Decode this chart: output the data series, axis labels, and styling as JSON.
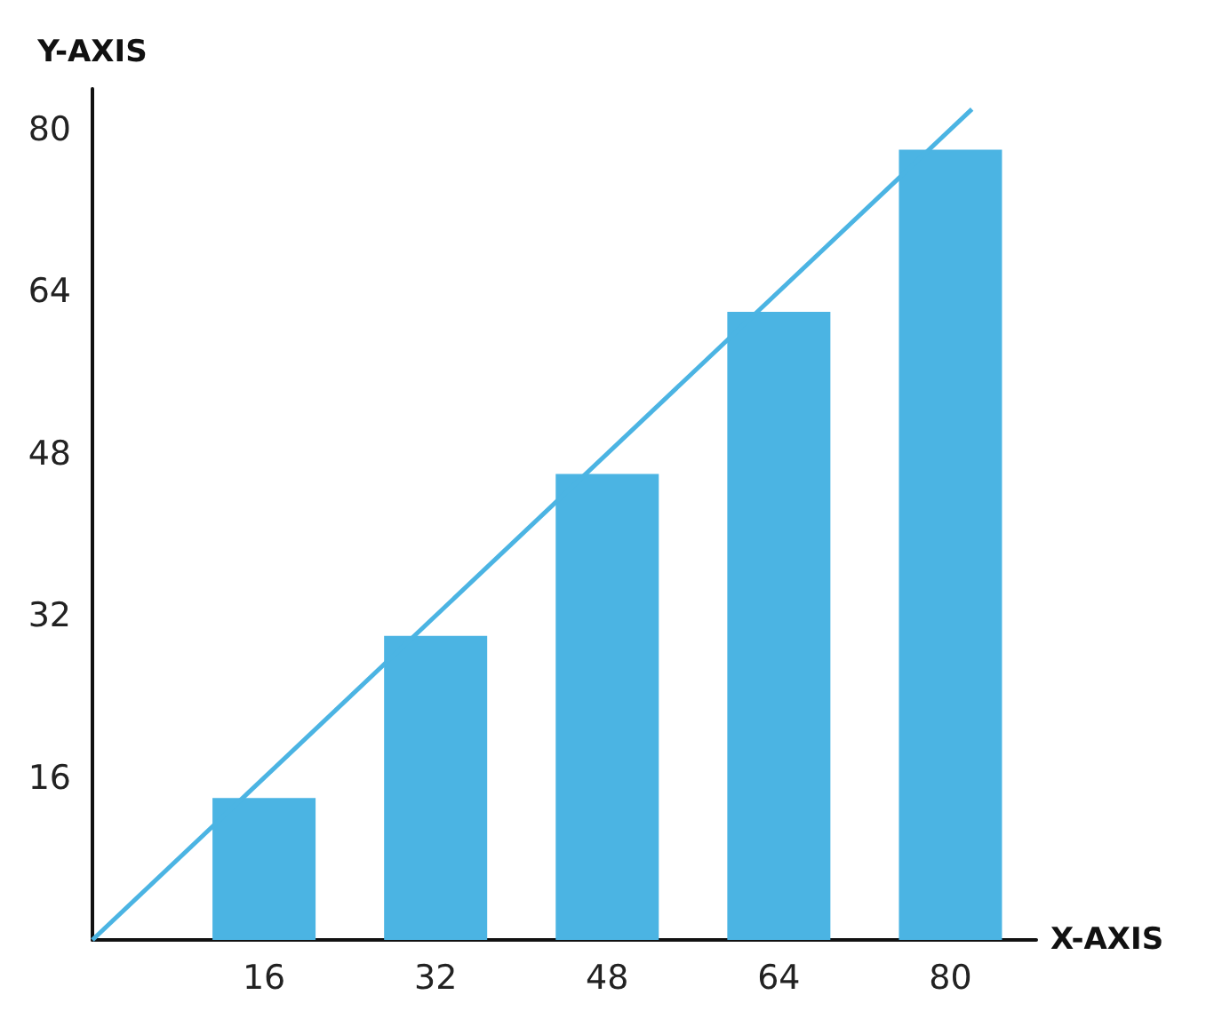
{
  "chart_data": {
    "type": "bar",
    "xlabel": "X-AXIS",
    "ylabel": "Y-AXIS",
    "x": [
      16,
      32,
      48,
      64,
      80
    ],
    "series": [
      {
        "color": "#4bb4e3",
        "values": [
          14,
          30,
          46,
          62,
          78
        ]
      },
      {
        "type": "line",
        "color": "#4bb4e3",
        "x": [
          0,
          82
        ],
        "values": [
          0,
          82
        ]
      }
    ],
    "xlim": [
      0,
      88
    ],
    "xticks": [
      16,
      32,
      48,
      64,
      80
    ],
    "ylim": [
      0,
      84
    ],
    "yticks": [
      16,
      32,
      48,
      64,
      80
    ],
    "grid": false,
    "marker": "none"
  }
}
